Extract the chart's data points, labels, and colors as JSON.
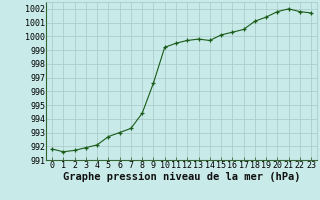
{
  "x": [
    0,
    1,
    2,
    3,
    4,
    5,
    6,
    7,
    8,
    9,
    10,
    11,
    12,
    13,
    14,
    15,
    16,
    17,
    18,
    19,
    20,
    21,
    22,
    23
  ],
  "y": [
    991.8,
    991.6,
    991.7,
    991.9,
    992.1,
    992.7,
    993.0,
    993.3,
    994.4,
    996.6,
    999.2,
    999.5,
    999.7,
    999.8,
    999.7,
    1000.1,
    1000.3,
    1000.5,
    1001.1,
    1001.4,
    1001.8,
    1002.0,
    1001.8,
    1001.7
  ],
  "ylim": [
    991,
    1002.5
  ],
  "yticks": [
    991,
    992,
    993,
    994,
    995,
    996,
    997,
    998,
    999,
    1000,
    1001,
    1002
  ],
  "xticks": [
    0,
    1,
    2,
    3,
    4,
    5,
    6,
    7,
    8,
    9,
    10,
    11,
    12,
    13,
    14,
    15,
    16,
    17,
    18,
    19,
    20,
    21,
    22,
    23
  ],
  "line_color": "#1a5c1a",
  "marker_color": "#1a5c1a",
  "bg_color": "#c8eae8",
  "grid_color": "#a8c8c8",
  "xlabel": "Graphe pression niveau de la mer (hPa)",
  "xlabel_fontsize": 7.5,
  "tick_fontsize": 6,
  "figsize": [
    3.2,
    2.0
  ],
  "dpi": 100
}
